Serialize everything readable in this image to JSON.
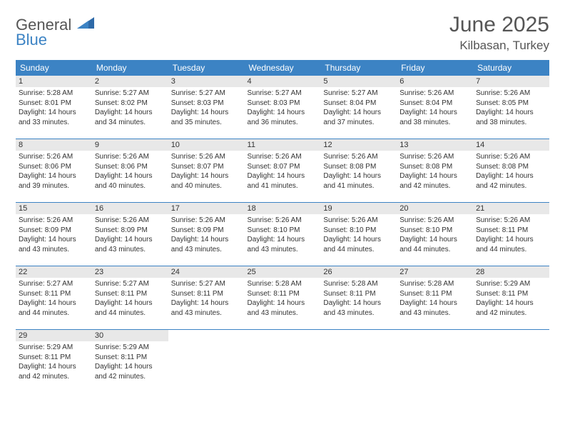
{
  "brand": {
    "word1": "General",
    "word2": "Blue"
  },
  "title": "June 2025",
  "location": "Kilbasan, Turkey",
  "colors": {
    "header_bg": "#3c83c4",
    "header_text": "#ffffff",
    "daynum_bg": "#e8e8e8",
    "rule": "#3c83c4",
    "text": "#333333",
    "page_bg": "#ffffff"
  },
  "days_of_week": [
    "Sunday",
    "Monday",
    "Tuesday",
    "Wednesday",
    "Thursday",
    "Friday",
    "Saturday"
  ],
  "weeks": [
    [
      {
        "n": "1",
        "sr": "5:28 AM",
        "ss": "8:01 PM",
        "dl": "14 hours and 33 minutes."
      },
      {
        "n": "2",
        "sr": "5:27 AM",
        "ss": "8:02 PM",
        "dl": "14 hours and 34 minutes."
      },
      {
        "n": "3",
        "sr": "5:27 AM",
        "ss": "8:03 PM",
        "dl": "14 hours and 35 minutes."
      },
      {
        "n": "4",
        "sr": "5:27 AM",
        "ss": "8:03 PM",
        "dl": "14 hours and 36 minutes."
      },
      {
        "n": "5",
        "sr": "5:27 AM",
        "ss": "8:04 PM",
        "dl": "14 hours and 37 minutes."
      },
      {
        "n": "6",
        "sr": "5:26 AM",
        "ss": "8:04 PM",
        "dl": "14 hours and 38 minutes."
      },
      {
        "n": "7",
        "sr": "5:26 AM",
        "ss": "8:05 PM",
        "dl": "14 hours and 38 minutes."
      }
    ],
    [
      {
        "n": "8",
        "sr": "5:26 AM",
        "ss": "8:06 PM",
        "dl": "14 hours and 39 minutes."
      },
      {
        "n": "9",
        "sr": "5:26 AM",
        "ss": "8:06 PM",
        "dl": "14 hours and 40 minutes."
      },
      {
        "n": "10",
        "sr": "5:26 AM",
        "ss": "8:07 PM",
        "dl": "14 hours and 40 minutes."
      },
      {
        "n": "11",
        "sr": "5:26 AM",
        "ss": "8:07 PM",
        "dl": "14 hours and 41 minutes."
      },
      {
        "n": "12",
        "sr": "5:26 AM",
        "ss": "8:08 PM",
        "dl": "14 hours and 41 minutes."
      },
      {
        "n": "13",
        "sr": "5:26 AM",
        "ss": "8:08 PM",
        "dl": "14 hours and 42 minutes."
      },
      {
        "n": "14",
        "sr": "5:26 AM",
        "ss": "8:08 PM",
        "dl": "14 hours and 42 minutes."
      }
    ],
    [
      {
        "n": "15",
        "sr": "5:26 AM",
        "ss": "8:09 PM",
        "dl": "14 hours and 43 minutes."
      },
      {
        "n": "16",
        "sr": "5:26 AM",
        "ss": "8:09 PM",
        "dl": "14 hours and 43 minutes."
      },
      {
        "n": "17",
        "sr": "5:26 AM",
        "ss": "8:09 PM",
        "dl": "14 hours and 43 minutes."
      },
      {
        "n": "18",
        "sr": "5:26 AM",
        "ss": "8:10 PM",
        "dl": "14 hours and 43 minutes."
      },
      {
        "n": "19",
        "sr": "5:26 AM",
        "ss": "8:10 PM",
        "dl": "14 hours and 44 minutes."
      },
      {
        "n": "20",
        "sr": "5:26 AM",
        "ss": "8:10 PM",
        "dl": "14 hours and 44 minutes."
      },
      {
        "n": "21",
        "sr": "5:26 AM",
        "ss": "8:11 PM",
        "dl": "14 hours and 44 minutes."
      }
    ],
    [
      {
        "n": "22",
        "sr": "5:27 AM",
        "ss": "8:11 PM",
        "dl": "14 hours and 44 minutes."
      },
      {
        "n": "23",
        "sr": "5:27 AM",
        "ss": "8:11 PM",
        "dl": "14 hours and 44 minutes."
      },
      {
        "n": "24",
        "sr": "5:27 AM",
        "ss": "8:11 PM",
        "dl": "14 hours and 43 minutes."
      },
      {
        "n": "25",
        "sr": "5:28 AM",
        "ss": "8:11 PM",
        "dl": "14 hours and 43 minutes."
      },
      {
        "n": "26",
        "sr": "5:28 AM",
        "ss": "8:11 PM",
        "dl": "14 hours and 43 minutes."
      },
      {
        "n": "27",
        "sr": "5:28 AM",
        "ss": "8:11 PM",
        "dl": "14 hours and 43 minutes."
      },
      {
        "n": "28",
        "sr": "5:29 AM",
        "ss": "8:11 PM",
        "dl": "14 hours and 42 minutes."
      }
    ],
    [
      {
        "n": "29",
        "sr": "5:29 AM",
        "ss": "8:11 PM",
        "dl": "14 hours and 42 minutes."
      },
      {
        "n": "30",
        "sr": "5:29 AM",
        "ss": "8:11 PM",
        "dl": "14 hours and 42 minutes."
      },
      null,
      null,
      null,
      null,
      null
    ]
  ],
  "labels": {
    "sunrise": "Sunrise:",
    "sunset": "Sunset:",
    "daylight": "Daylight:"
  }
}
